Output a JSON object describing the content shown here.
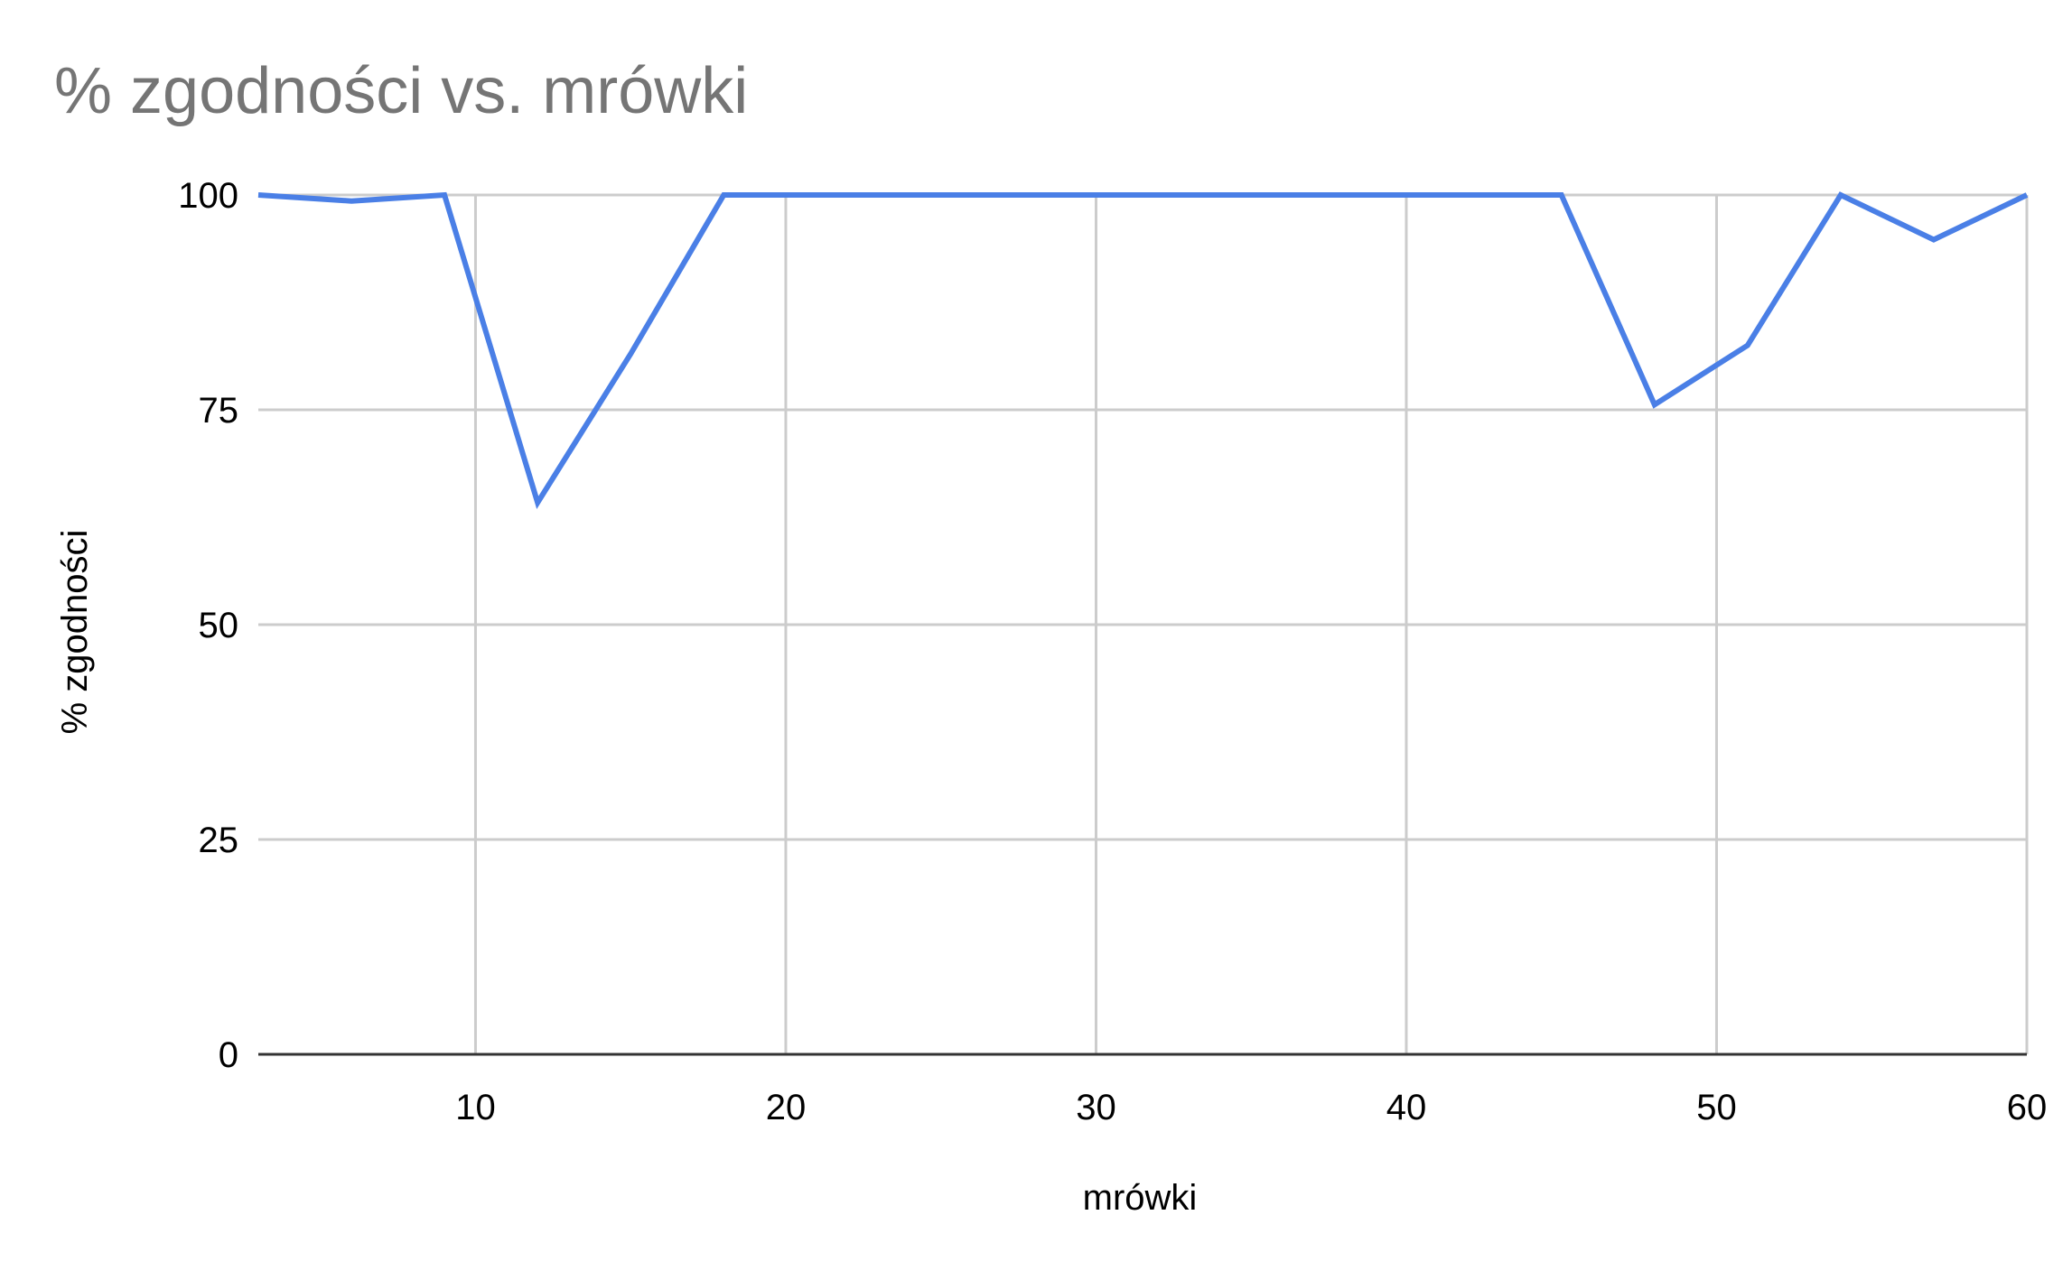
{
  "chart_data": {
    "type": "line",
    "title": "% zgodności vs. mrówki",
    "xlabel": "mrówki",
    "ylabel": "% zgodności",
    "xlim": [
      3,
      60
    ],
    "ylim": [
      0,
      100
    ],
    "x_ticks": [
      10,
      20,
      30,
      40,
      50,
      60
    ],
    "y_ticks": [
      0,
      25,
      50,
      75,
      100
    ],
    "grid": true,
    "legend": "none",
    "series": [
      {
        "color": "#4a7fe6",
        "x": [
          3,
          6,
          9,
          12,
          15,
          18,
          21,
          24,
          27,
          30,
          33,
          36,
          39,
          42,
          45,
          48,
          51,
          54,
          57,
          60
        ],
        "y": [
          100,
          99.3,
          100,
          64.2,
          81.5,
          100,
          100,
          100,
          100,
          100,
          100,
          100,
          100,
          100,
          100,
          75.6,
          82.5,
          100,
          94.8,
          100
        ]
      }
    ]
  }
}
